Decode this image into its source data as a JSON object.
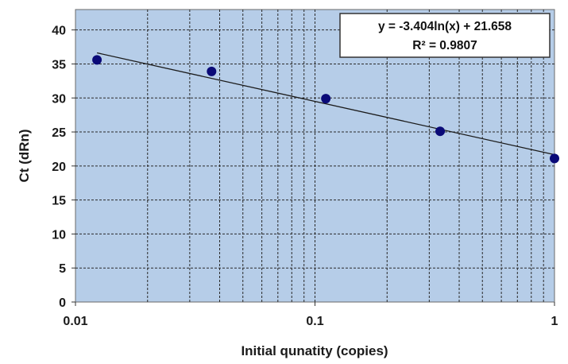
{
  "chart_data": {
    "type": "scatter",
    "x_scale": "log",
    "xlabel": "Initial qunatity (copies)",
    "ylabel": "Ct (dRn)",
    "xlim": [
      0.01,
      1
    ],
    "ylim": [
      0,
      43
    ],
    "x_ticks": [
      "0.01",
      "0.1",
      "1"
    ],
    "y_ticks": [
      "0",
      "5",
      "10",
      "15",
      "20",
      "25",
      "30",
      "35",
      "40"
    ],
    "grid": true,
    "series": [
      {
        "points": [
          {
            "x": 0.0123,
            "y": 35.6
          },
          {
            "x": 0.037,
            "y": 33.9
          },
          {
            "x": 0.111,
            "y": 29.9
          },
          {
            "x": 0.333,
            "y": 25.1
          },
          {
            "x": 1.0,
            "y": 21.1
          }
        ],
        "marker_color": "#0a0a78"
      }
    ],
    "trendline": {
      "type": "logarithmic",
      "slope": -3.404,
      "intercept": 21.658,
      "x_range": [
        0.0123,
        1.0
      ],
      "equation_label": "y = -3.404ln(x) + 21.658",
      "r2_label": "R² = 0.9807"
    },
    "colors": {
      "plot_background": "#b6cde8",
      "grid": "#2a2a2a",
      "trendline": "#1a1a1a"
    }
  }
}
